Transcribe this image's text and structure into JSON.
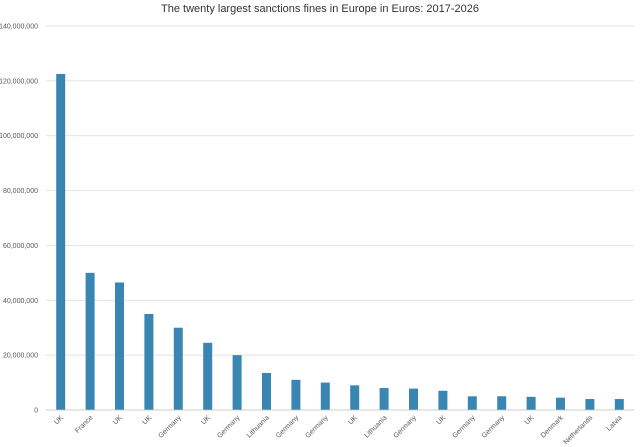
{
  "chart_data": {
    "type": "bar",
    "title": "The twenty largest sanctions fines in Europe in Euros: 2017-2026",
    "xlabel": "",
    "ylabel": "",
    "ylim": [
      0,
      140000000
    ],
    "yticks": [
      0,
      20000000,
      40000000,
      60000000,
      80000000,
      100000000,
      120000000,
      140000000
    ],
    "ytick_labels": [
      "0",
      "20,000,000",
      "40,000,000",
      "60,000,000",
      "80,000,000",
      "100,000,000",
      "120,000,000",
      "140,000,000"
    ],
    "grid": true,
    "legend": "none",
    "bar_color": "#3a86b3",
    "categories": [
      "UK",
      "France",
      "UK",
      "UK",
      "Germany",
      "UK",
      "Germany",
      "Lithuania",
      "Germany",
      "Germany",
      "UK",
      "Lithuania",
      "Germany",
      "UK",
      "Germany",
      "Germany",
      "UK",
      "Denmark",
      "Netherlands",
      "Latvia"
    ],
    "values": [
      122500000,
      50000000,
      46500000,
      35000000,
      30000000,
      24500000,
      20000000,
      13500000,
      11000000,
      10000000,
      9000000,
      8000000,
      7800000,
      7000000,
      5000000,
      5000000,
      4800000,
      4500000,
      4000000,
      4000000
    ]
  }
}
